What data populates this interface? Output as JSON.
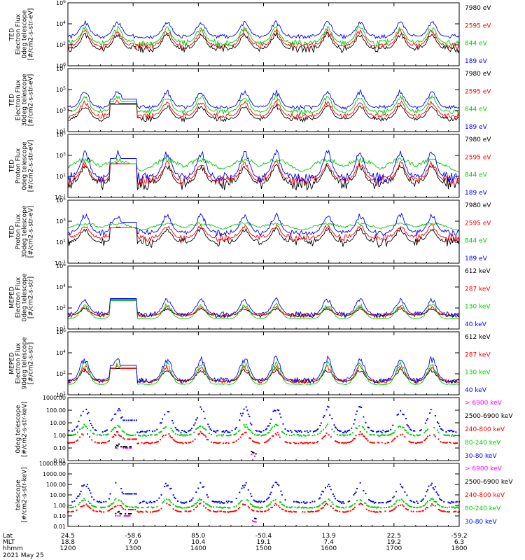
{
  "chart_data": [
    {
      "type": "line",
      "ylabel": [
        "TED",
        "Electron Flux",
        "0deg telescope",
        "[#/cm2-s-str-eV]"
      ],
      "yscale": "log",
      "ylim_exp": [
        0,
        6
      ],
      "yticks": [
        "10^0",
        "10^2",
        "10^4",
        "10^6"
      ],
      "series": [
        {
          "name": "7980 eV",
          "color": "#000000",
          "base": 1.6,
          "spikes": 3.2,
          "noise": 0.35,
          "seed": 11
        },
        {
          "name": "2595 eV",
          "color": "#ff0000",
          "base": 1.9,
          "spikes": 3.5,
          "noise": 0.3,
          "seed": 12
        },
        {
          "name": "844 eV",
          "color": "#00cc00",
          "base": 2.2,
          "spikes": 3.8,
          "noise": 0.3,
          "seed": 13
        },
        {
          "name": "189 eV",
          "color": "#0000ff",
          "base": 2.8,
          "spikes": 4.3,
          "noise": 0.2,
          "seed": 14
        }
      ]
    },
    {
      "type": "line",
      "ylabel": [
        "TED",
        "Electron Flux",
        "30deg telescope",
        "[#/cm2-s-str-eV]"
      ],
      "yscale": "log",
      "ylim_exp": [
        1,
        7
      ],
      "yticks": [
        "10^1",
        "10^3",
        "10^5",
        "10^7"
      ],
      "series": [
        {
          "name": "7980 eV",
          "color": "#000000",
          "base": 2.2,
          "spikes": 3.6,
          "noise": 0.25,
          "seed": 21
        },
        {
          "name": "2595 eV",
          "color": "#ff0000",
          "base": 2.5,
          "spikes": 4.0,
          "noise": 0.25,
          "seed": 22
        },
        {
          "name": "844 eV",
          "color": "#00cc00",
          "base": 2.9,
          "spikes": 4.5,
          "noise": 0.25,
          "seed": 23
        },
        {
          "name": "189 eV",
          "color": "#0000ff",
          "base": 3.3,
          "spikes": 5.0,
          "noise": 0.2,
          "seed": 24
        }
      ]
    },
    {
      "type": "line",
      "ylabel": [
        "TED",
        "Proton Flux",
        "0deg telescope",
        "[#/cm2-s-str-eV]"
      ],
      "yscale": "log",
      "ylim_exp": [
        -1,
        5
      ],
      "yticks": [
        "10^-1",
        "10^1",
        "10^3",
        "10^5"
      ],
      "series": [
        {
          "name": "7980 eV",
          "color": "#000000",
          "base": 0.3,
          "spikes": 2.2,
          "noise": 0.6,
          "seed": 31
        },
        {
          "name": "2595 eV",
          "color": "#ff0000",
          "base": 0.6,
          "spikes": 2.5,
          "noise": 0.5,
          "seed": 32
        },
        {
          "name": "844 eV",
          "color": "#00cc00",
          "base": 1.2,
          "spikes": 2.8,
          "noise": 0.3,
          "seed": 33
        },
        {
          "name": "189 eV",
          "color": "#0000ff",
          "base": 0.9,
          "spikes": 3.6,
          "noise": 0.5,
          "seed": 34
        }
      ]
    },
    {
      "type": "line",
      "ylabel": [
        "TED",
        "Proton Flux",
        "30deg telescope",
        "[#/cm2-s-str-eV]"
      ],
      "yscale": "log",
      "ylim_exp": [
        -1,
        5
      ],
      "yticks": [
        "10^-1",
        "10^1",
        "10^3",
        "10^5"
      ],
      "series": [
        {
          "name": "7980 eV",
          "color": "#000000",
          "base": 1.0,
          "spikes": 2.4,
          "noise": 0.5,
          "seed": 41
        },
        {
          "name": "2595 eV",
          "color": "#ff0000",
          "base": 1.4,
          "spikes": 2.7,
          "noise": 0.4,
          "seed": 42
        },
        {
          "name": "844 eV",
          "color": "#00cc00",
          "base": 2.0,
          "spikes": 2.9,
          "noise": 0.25,
          "seed": 43
        },
        {
          "name": "189 eV",
          "color": "#0000ff",
          "base": 1.9,
          "spikes": 3.8,
          "noise": 0.3,
          "seed": 44
        }
      ]
    },
    {
      "type": "line",
      "ylabel": [
        "MEPED",
        "Electron Flux",
        "0deg telescope",
        "[#/cm2-s-str]"
      ],
      "yscale": "log",
      "ylim_exp": [
        1,
        7
      ],
      "yticks": [
        "10^1",
        "10^2",
        "10^4",
        "10^6"
      ],
      "series": [
        {
          "name": "612 keV",
          "color": "#000000",
          "base": 2.3,
          "spikes": 3.0,
          "noise": 0.2,
          "seed": 51
        },
        {
          "name": "287 keV",
          "color": "#ff0000",
          "base": 2.3,
          "spikes": 3.2,
          "noise": 0.2,
          "seed": 52
        },
        {
          "name": "130 keV",
          "color": "#00cc00",
          "base": 2.0,
          "spikes": 3.5,
          "noise": 0.05,
          "seed": 53
        },
        {
          "name": "40 keV",
          "color": "#0000ff",
          "base": 2.4,
          "spikes": 4.0,
          "noise": 0.25,
          "seed": 54
        }
      ]
    },
    {
      "type": "line",
      "ylabel": [
        "MEPED",
        "Electron Flux",
        "90deg telescope",
        "[#/cm2-s-str]"
      ],
      "yscale": "log",
      "ylim_exp": [
        1,
        7
      ],
      "yticks": [
        "10^1",
        "10^2",
        "10^4",
        "10^6"
      ],
      "series": [
        {
          "name": "612 keV",
          "color": "#000000",
          "base": 2.3,
          "spikes": 3.5,
          "noise": 0.2,
          "seed": 61
        },
        {
          "name": "287 keV",
          "color": "#ff0000",
          "base": 2.3,
          "spikes": 3.8,
          "noise": 0.2,
          "seed": 62
        },
        {
          "name": "130 keV",
          "color": "#00cc00",
          "base": 2.0,
          "spikes": 4.2,
          "noise": 0.05,
          "seed": 63
        },
        {
          "name": "40 keV",
          "color": "#0000ff",
          "base": 2.4,
          "spikes": 4.7,
          "noise": 0.25,
          "seed": 64
        }
      ]
    },
    {
      "type": "scatter",
      "ylabel": [
        "0deg telescope",
        "[#/cm2-s-str-keV]"
      ],
      "yscale": "log",
      "ylim_exp": [
        -2,
        3
      ],
      "yticks": [
        "0.01",
        "0.10",
        "1.00",
        "10.00",
        "100.00",
        "1000.00"
      ],
      "series": [
        {
          "name": "> 6900 keV",
          "color": "#ff00ff",
          "base": -1.7,
          "spikes": -1.0,
          "noise": 0.0,
          "seed": 71
        },
        {
          "name": "2500-6900 keV",
          "color": "#000000",
          "base": -1.5,
          "spikes": -0.6,
          "noise": 0.05,
          "seed": 72
        },
        {
          "name": "240-800 keV",
          "color": "#ff0000",
          "base": -0.6,
          "spikes": 0.3,
          "noise": 0.05,
          "seed": 73
        },
        {
          "name": "80-240 keV",
          "color": "#00cc00",
          "base": 0.0,
          "spikes": 0.9,
          "noise": 0.05,
          "seed": 74
        },
        {
          "name": "30-80 keV",
          "color": "#0000ff",
          "base": 0.3,
          "spikes": 2.4,
          "noise": 0.1,
          "seed": 75
        }
      ]
    },
    {
      "type": "scatter",
      "ylabel": [
        "telescope",
        "[#/cm2-s-str-keV]"
      ],
      "yscale": "log",
      "ylim_exp": [
        -2,
        4
      ],
      "yticks": [
        "0.01",
        "0.10",
        "1.00",
        "10.00",
        "100.00",
        "1000.00",
        "10000.00"
      ],
      "series": [
        {
          "name": "> 6900 keV",
          "color": "#ff00ff",
          "base": -1.6,
          "spikes": -1.0,
          "noise": 0.0,
          "seed": 81
        },
        {
          "name": "2500-6900 keV",
          "color": "#000000",
          "base": -1.3,
          "spikes": -0.5,
          "noise": 0.05,
          "seed": 82
        },
        {
          "name": "240-800 keV",
          "color": "#ff0000",
          "base": -0.6,
          "spikes": 0.2,
          "noise": 0.05,
          "seed": 83
        },
        {
          "name": "80-240 keV",
          "color": "#00cc00",
          "base": -0.2,
          "spikes": 0.7,
          "noise": 0.05,
          "seed": 84
        },
        {
          "name": "30-80 keV",
          "color": "#0000ff",
          "base": 0.3,
          "spikes": 2.3,
          "noise": 0.1,
          "seed": 85
        }
      ]
    }
  ],
  "time_axis": {
    "row_labels": [
      "Lat",
      "MLT",
      "hhmm",
      "2021 May 25"
    ],
    "lat": [
      "24.5",
      "-58.6",
      "85.0",
      "-50.4",
      "13.9",
      "22.5",
      "-59.2"
    ],
    "mlt": [
      "18.8",
      "7.0",
      "10.4",
      "19.1",
      "7.4",
      "19.2",
      "6.3"
    ],
    "hhmm": [
      "1200",
      "1300",
      "1400",
      "1500",
      "1600",
      "1700",
      "1800"
    ]
  }
}
